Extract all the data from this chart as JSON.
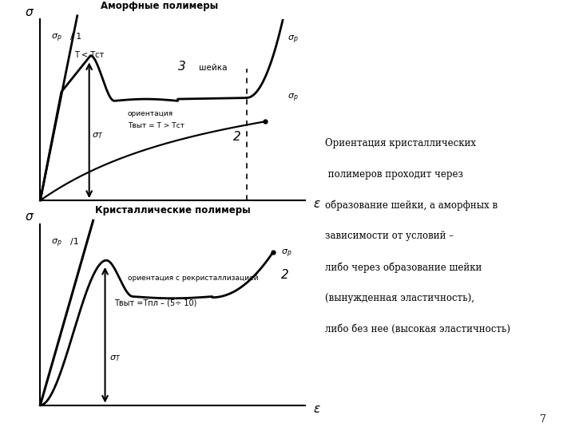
{
  "bg_color": "#ffffff",
  "text_color": "#000000",
  "top_chart_title": "Аморфные полимеры",
  "bottom_chart_title": "Кристаллические полимеры",
  "right_text_line1": "Ориентация кристаллических",
  "right_text_line2": " полимеров проходит через",
  "right_text_line3": "образование шейки, а аморфных в",
  "right_text_line4": "зависимости от условий –",
  "right_text_line5": "либо через образование шейки",
  "right_text_line6": "(вынужденная эластичность),",
  "right_text_line7": "либо без нее (высокая эластичность)",
  "page_number": "7"
}
